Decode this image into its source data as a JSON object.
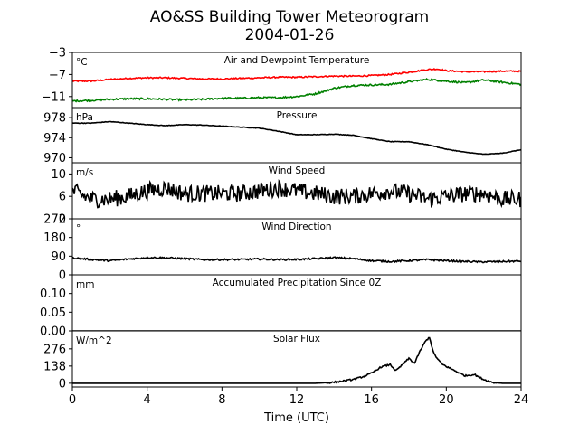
{
  "chart_data": {
    "type": "line",
    "title": "AO&SS Building Tower Meteorogram",
    "subtitle": "2004-01-26",
    "xlabel": "Time (UTC)",
    "xlim": [
      0,
      24
    ],
    "xticks": [
      0,
      4,
      8,
      12,
      16,
      20,
      24
    ],
    "panels": [
      {
        "id": "temperature",
        "label": "Air and Dewpoint Temperature",
        "unit": "°C",
        "ylim": [
          -13,
          -3
        ],
        "yticks": [
          -3,
          -7,
          -11
        ],
        "ytick_labels": [
          "−3",
          "−7",
          "−11"
        ],
        "series": [
          {
            "color": "#ff0000",
            "noise": 0.12,
            "x": [
              0,
              1,
              2,
              3,
              4,
              5,
              6,
              7,
              8,
              9,
              10,
              11,
              12,
              13,
              14,
              15,
              16,
              17,
              18,
              19,
              19.5,
              20,
              21,
              22,
              23,
              24
            ],
            "y": [
              -8.2,
              -8.2,
              -7.9,
              -7.7,
              -7.6,
              -7.6,
              -7.7,
              -7.8,
              -7.8,
              -7.7,
              -7.6,
              -7.5,
              -7.5,
              -7.4,
              -7.3,
              -7.3,
              -7.2,
              -7.0,
              -6.6,
              -6.1,
              -6.0,
              -6.3,
              -6.5,
              -6.5,
              -6.4,
              -6.4
            ]
          },
          {
            "color": "#008000",
            "noise": 0.15,
            "x": [
              0,
              1,
              2,
              3,
              4,
              5,
              6,
              7,
              8,
              9,
              10,
              11,
              12,
              13,
              14,
              15,
              16,
              17,
              18,
              19,
              20,
              21,
              22,
              23,
              24
            ],
            "y": [
              -11.8,
              -11.7,
              -11.5,
              -11.4,
              -11.4,
              -11.5,
              -11.6,
              -11.5,
              -11.3,
              -11.3,
              -11.2,
              -11.2,
              -11.0,
              -10.5,
              -9.5,
              -9.0,
              -8.9,
              -8.8,
              -8.3,
              -7.9,
              -8.2,
              -8.5,
              -8.0,
              -8.4,
              -8.8
            ]
          }
        ]
      },
      {
        "id": "pressure",
        "label": "Pressure",
        "unit": "hPa",
        "ylim": [
          969.0,
          980.0
        ],
        "yticks": [
          978,
          974,
          970
        ],
        "ytick_labels": [
          "978",
          "974",
          "970"
        ],
        "series": [
          {
            "color": "#000000",
            "noise": 0.05,
            "x": [
              0,
              1,
              2,
              3,
              4,
              5,
              6,
              7,
              8,
              9,
              10,
              11,
              12,
              13,
              14,
              15,
              16,
              17,
              18,
              19,
              20,
              21,
              22,
              23,
              24
            ],
            "y": [
              976.9,
              976.9,
              977.2,
              976.9,
              976.6,
              976.4,
              976.6,
              976.5,
              976.3,
              976.1,
              975.9,
              975.3,
              974.6,
              974.6,
              974.7,
              974.5,
              973.8,
              973.2,
              973.2,
              972.6,
              971.7,
              971.1,
              970.7,
              970.9,
              971.6
            ]
          }
        ]
      },
      {
        "id": "wind-speed",
        "label": "Wind Speed",
        "unit": "m/s",
        "ylim": [
          2,
          12
        ],
        "yticks": [
          10,
          6,
          2
        ],
        "ytick_labels": [
          "10",
          "6",
          "2"
        ],
        "series": [
          {
            "color": "#000000",
            "noise": 1.5,
            "x": [
              0,
              1,
              2,
              3,
              4,
              5,
              6,
              7,
              8,
              9,
              10,
              11,
              12,
              13,
              14,
              15,
              16,
              17,
              18,
              19,
              20,
              21,
              22,
              23,
              24
            ],
            "y": [
              7.0,
              5.5,
              5.5,
              6.0,
              7.0,
              7.5,
              6.5,
              6.5,
              6.5,
              6.5,
              7.0,
              7.5,
              7.0,
              6.5,
              6.0,
              6.0,
              6.5,
              7.0,
              6.5,
              5.5,
              6.0,
              6.5,
              6.5,
              5.5,
              5.5
            ]
          }
        ]
      },
      {
        "id": "wind-direction",
        "label": "Wind Direction",
        "unit": "°",
        "ylim": [
          0,
          270
        ],
        "yticks": [
          270,
          180,
          90,
          0
        ],
        "ytick_labels": [
          "270",
          "180",
          "90",
          "0"
        ],
        "series": [
          {
            "color": "#000000",
            "noise": 4,
            "x": [
              0,
              1,
              2,
              3,
              4,
              5,
              6,
              7,
              8,
              9,
              10,
              11,
              12,
              13,
              14,
              15,
              16,
              17,
              18,
              19,
              20,
              21,
              22,
              23,
              24
            ],
            "y": [
              82,
              74,
              68,
              76,
              83,
              82,
              78,
              73,
              73,
              74,
              76,
              73,
              74,
              78,
              83,
              78,
              68,
              64,
              68,
              73,
              68,
              64,
              62,
              64,
              66
            ]
          }
        ]
      },
      {
        "id": "precipitation",
        "label": "Accumulated Precipitation Since 0Z",
        "unit": "mm",
        "ylim": [
          0,
          0.15
        ],
        "yticks": [
          0.1,
          0.05,
          0.0
        ],
        "ytick_labels": [
          "0.10",
          "0.05",
          "0.00"
        ],
        "series": [
          {
            "color": "#000000",
            "noise": 0,
            "x": [
              0,
              24
            ],
            "y": [
              0,
              0
            ]
          }
        ]
      },
      {
        "id": "solar-flux",
        "label": "Solar Flux",
        "unit": "W/m^2",
        "ylim": [
          -30,
          420
        ],
        "yticks": [
          276,
          138,
          0
        ],
        "ytick_labels": [
          "276",
          "138",
          "0"
        ],
        "series": [
          {
            "color": "#000000",
            "noise": 6,
            "x": [
              0,
              13,
              13.8,
              14.5,
              15,
              15.5,
              16,
              16.5,
              17,
              17.3,
              17.6,
              18,
              18.3,
              18.6,
              18.9,
              19.1,
              19.3,
              19.5,
              19.8,
              20.2,
              20.6,
              21,
              21.5,
              22,
              22.5,
              23,
              24
            ],
            "y": [
              0,
              0,
              5,
              18,
              30,
              50,
              80,
              130,
              150,
              100,
              140,
              200,
              160,
              260,
              340,
              370,
              250,
              200,
              150,
              120,
              90,
              60,
              70,
              30,
              5,
              0,
              0
            ]
          }
        ]
      }
    ]
  }
}
